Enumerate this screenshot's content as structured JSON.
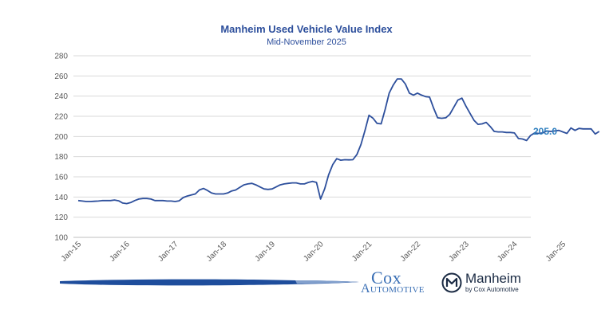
{
  "chart_data": {
    "type": "line",
    "title": "Manheim Used Vehicle Value Index",
    "subtitle": "Mid-November 2025",
    "xlabel": "",
    "ylabel": "",
    "ylim": [
      100,
      280
    ],
    "y_ticks": [
      "100",
      "120",
      "140",
      "160",
      "180",
      "200",
      "220",
      "240",
      "260",
      "280"
    ],
    "x_ticks": [
      "Jan-15",
      "Jan-16",
      "Jan-17",
      "Jan-18",
      "Jan-19",
      "Jan-20",
      "Jan-21",
      "Jan-22",
      "Jan-23",
      "Jan-24",
      "Jan-25"
    ],
    "grid": "horizontal",
    "legend": "none",
    "end_label": "205.0",
    "series": [
      {
        "color": "#2d4f9c",
        "start": "2015-01",
        "frequency": "monthly",
        "values": [
          136.5,
          136,
          135.5,
          135.5,
          135.8,
          136,
          136.5,
          136.5,
          136.5,
          137,
          136.2,
          134,
          133.5,
          134.5,
          136.5,
          138,
          138.5,
          138.5,
          138,
          136.5,
          136.5,
          136.5,
          136,
          136,
          135.5,
          136.2,
          139.5,
          141,
          142,
          143,
          147,
          148.5,
          146.5,
          144,
          143,
          143,
          143,
          144,
          146,
          147,
          149.5,
          152,
          153,
          153.5,
          152,
          150,
          148,
          147.5,
          148,
          150,
          152,
          153,
          153.5,
          154,
          154,
          153,
          153,
          154.5,
          155.5,
          154.5,
          138,
          148,
          162,
          172,
          178,
          176.5,
          177,
          176.8,
          177,
          182,
          192,
          206,
          221,
          218,
          213,
          212.5,
          227,
          243,
          251,
          257,
          257,
          252,
          243,
          241,
          243,
          241,
          239.5,
          239,
          228,
          218.5,
          218,
          218.5,
          222,
          229,
          236,
          238,
          230,
          223,
          216,
          212,
          212.5,
          214,
          210,
          205,
          204.5,
          204.5,
          204,
          204,
          203.5,
          198,
          197.5,
          196,
          201,
          203.5,
          203,
          203.5,
          205.5,
          205,
          205.5,
          206,
          204.5,
          203,
          208.5,
          206,
          208,
          207.5,
          207.5,
          207.5,
          202.5,
          205
        ]
      }
    ]
  },
  "footer": {
    "cox_word": "Cox",
    "cox_sub": "Automotive",
    "manheim_word": "Manheim",
    "manheim_sub": "by Cox Automotive"
  },
  "colors": {
    "line": "#2d4f9c",
    "end_label": "#2f7fbf",
    "grid": "#d9d9d9",
    "brush": "#1e4d9c"
  }
}
